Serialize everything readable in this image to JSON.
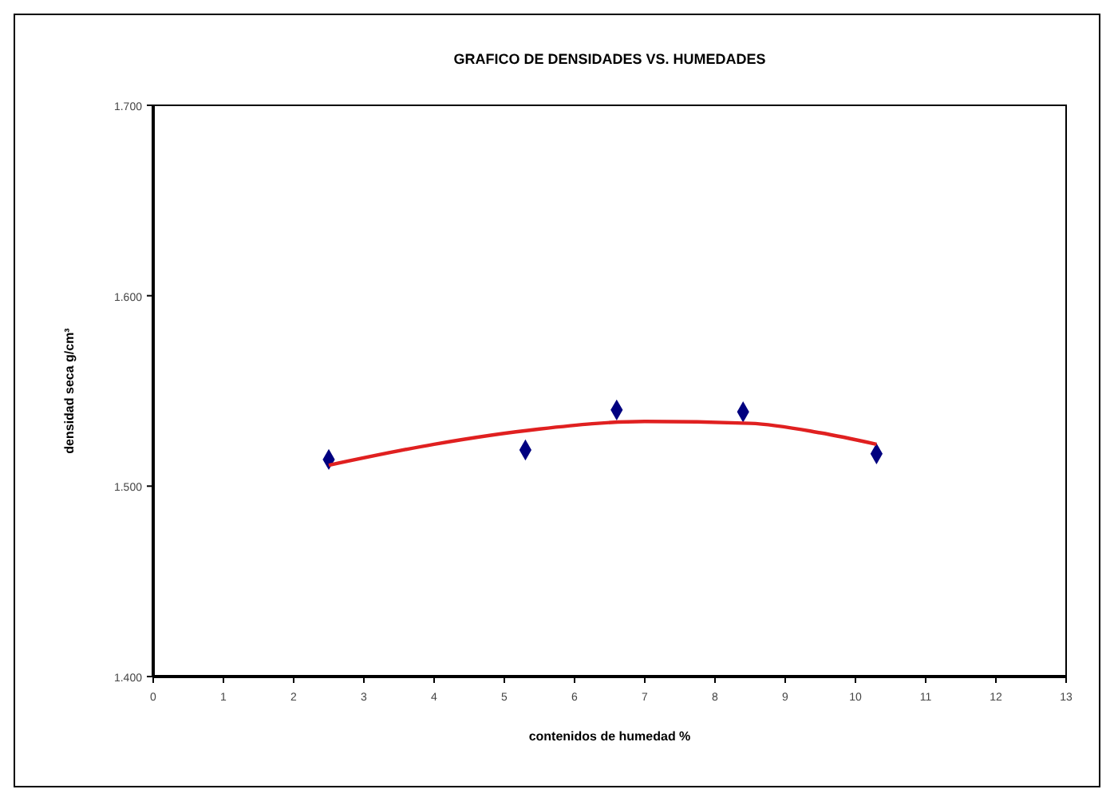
{
  "chart_data": {
    "type": "scatter",
    "title": "GRAFICO DE DENSIDADES  VS. HUMEDADES",
    "xlabel": "contenidos de humedad  %",
    "ylabel": "densidad seca  g/cm³",
    "x": [
      2.5,
      5.3,
      6.6,
      8.4,
      10.3
    ],
    "series": [
      {
        "color": "#000080",
        "marker": "diamond",
        "values": [
          1.514,
          1.519,
          1.54,
          1.539,
          1.517
        ]
      },
      {
        "type": "line",
        "color": "#e02020",
        "marker": "none",
        "x": [
          2.5,
          4,
          5.5,
          7,
          8.5,
          9.5,
          10.3
        ],
        "values": [
          1.511,
          1.522,
          1.53,
          1.534,
          1.533,
          1.528,
          1.522
        ]
      }
    ],
    "xlim": [
      0,
      13
    ],
    "xticks": [
      0,
      1,
      2,
      3,
      4,
      5,
      6,
      7,
      8,
      9,
      10,
      11,
      12,
      13
    ],
    "ylim": [
      1.4,
      1.7
    ],
    "yticks": [
      {
        "value": 1.4,
        "label": "1.400"
      },
      {
        "value": 1.5,
        "label": "1.500"
      },
      {
        "value": 1.6,
        "label": "1.600"
      },
      {
        "value": 1.7,
        "label": "1.700"
      }
    ],
    "grid": false
  }
}
